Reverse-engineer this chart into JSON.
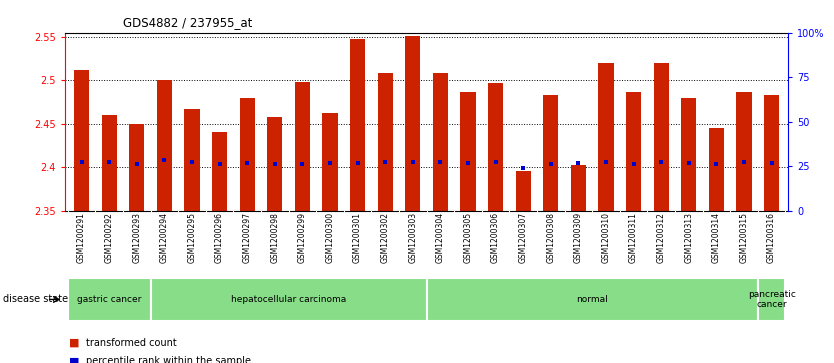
{
  "title": "GDS4882 / 237955_at",
  "samples": [
    "GSM1200291",
    "GSM1200292",
    "GSM1200293",
    "GSM1200294",
    "GSM1200295",
    "GSM1200296",
    "GSM1200297",
    "GSM1200298",
    "GSM1200299",
    "GSM1200300",
    "GSM1200301",
    "GSM1200302",
    "GSM1200303",
    "GSM1200304",
    "GSM1200305",
    "GSM1200306",
    "GSM1200307",
    "GSM1200308",
    "GSM1200309",
    "GSM1200310",
    "GSM1200311",
    "GSM1200312",
    "GSM1200313",
    "GSM1200314",
    "GSM1200315",
    "GSM1200316"
  ],
  "bar_values": [
    2.512,
    2.46,
    2.45,
    2.5,
    2.467,
    2.44,
    2.48,
    2.458,
    2.498,
    2.462,
    2.548,
    2.508,
    2.551,
    2.508,
    2.487,
    2.497,
    2.395,
    2.483,
    2.402,
    2.52,
    2.487,
    2.52,
    2.48,
    2.445,
    2.487,
    2.483
  ],
  "percentile_values": [
    2.406,
    2.406,
    2.404,
    2.408,
    2.406,
    2.404,
    2.405,
    2.404,
    2.404,
    2.405,
    2.405,
    2.406,
    2.406,
    2.406,
    2.405,
    2.406,
    2.399,
    2.404,
    2.405,
    2.406,
    2.404,
    2.406,
    2.405,
    2.404,
    2.406,
    2.405
  ],
  "bar_base": 2.35,
  "ylim_left": [
    2.35,
    2.555
  ],
  "ylim_right": [
    0,
    100
  ],
  "yticks_left": [
    2.35,
    2.4,
    2.45,
    2.5,
    2.55
  ],
  "ytick_labels_left": [
    "2.35",
    "2.4",
    "2.45",
    "2.5",
    "2.55"
  ],
  "yticks_right": [
    0,
    25,
    50,
    75,
    100
  ],
  "ytick_labels_right": [
    "0",
    "25",
    "50",
    "75",
    "100%"
  ],
  "bar_color": "#cc2200",
  "dot_color": "#0000cc",
  "xtick_bg": "#d8d8d8",
  "group_color": "#88dd88",
  "groups": [
    {
      "label": "gastric cancer",
      "start": 0,
      "end": 3
    },
    {
      "label": "hepatocellular carcinoma",
      "start": 3,
      "end": 13
    },
    {
      "label": "normal",
      "start": 13,
      "end": 25
    },
    {
      "label": "pancreatic\ncancer",
      "start": 25,
      "end": 26
    }
  ]
}
